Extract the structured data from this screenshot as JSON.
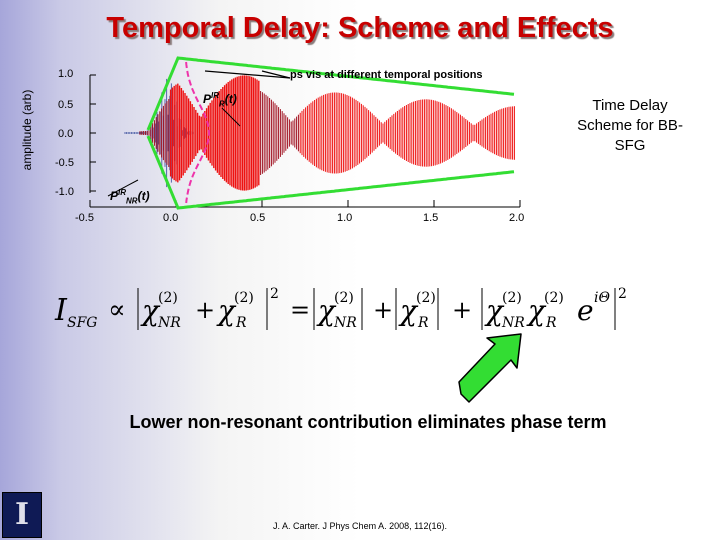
{
  "slide": {
    "title": "Temporal Delay: Scheme and Effects",
    "side_note": "Time Delay Scheme for BB-SFG",
    "conclusion": "Lower non-resonant contribution eliminates phase term",
    "citation": "J. A. Carter. J Phys Chem A. 2008, 112(16)."
  },
  "plot": {
    "ylabel": "amplitude (arb)",
    "y_ticks": [
      "1.0",
      "0.5",
      "0.0",
      "-0.5",
      "-1.0"
    ],
    "x_ticks": [
      "-0.5",
      "0.0",
      "0.5",
      "1.0",
      "1.5",
      "2.0"
    ],
    "annotation_top": "ps vis at different temporal positions",
    "label_resonant": {
      "base": "P",
      "sup": "IR",
      "sub": "R",
      "arg": "(t)"
    },
    "label_nonresonant": {
      "base": "P",
      "sup": "IR",
      "sub": "NR",
      "arg": "(t)"
    },
    "colors": {
      "envelope": "#33dd33",
      "resonant": "#ee1111",
      "nonresonant": "#5566aa",
      "vis_pulse": "#ee33aa"
    }
  },
  "equation": {
    "lhs": "I",
    "lhs_sub": "SFG",
    "proportional": "∝",
    "chi": "χ",
    "order": "(2)",
    "nr": "NR",
    "r": "R",
    "plus": "+",
    "equals": "=",
    "exp_base": "e",
    "exp_power": "iΘ",
    "square": "2"
  },
  "arrow": {
    "color": "#33dd33"
  },
  "logo": {
    "mark": "I"
  }
}
